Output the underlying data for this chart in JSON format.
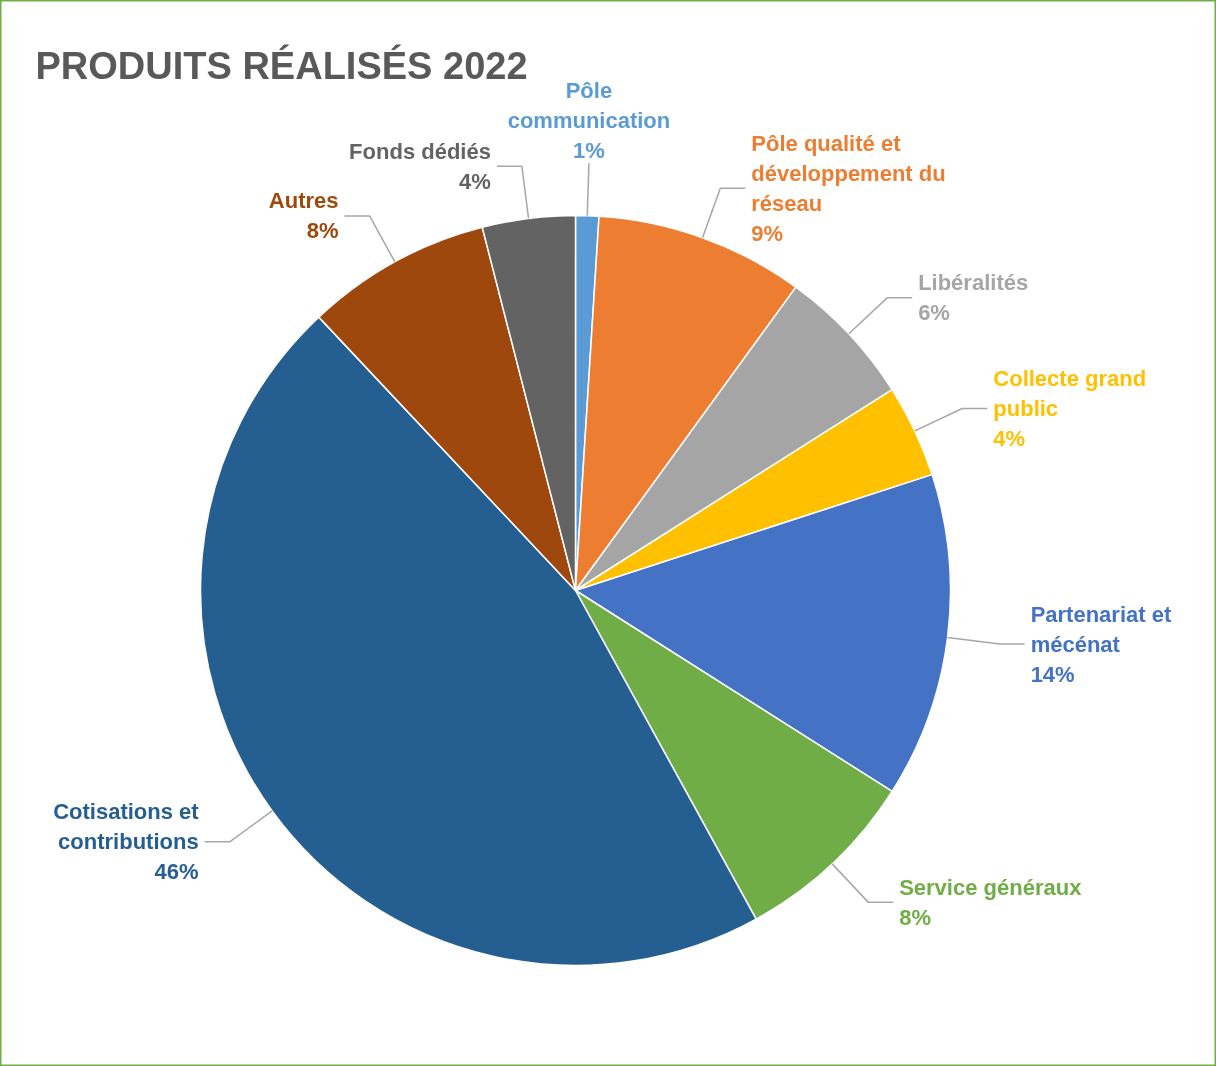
{
  "chart_data": {
    "type": "pie",
    "title": "PRODUITS RÉALISÉS 2022",
    "categories": [
      "Pôle communication",
      "Pôle qualité et développement du réseau",
      "Libéralités",
      "Collecte grand public",
      "Partenariat et mécénat",
      "Service généraux",
      "Cotisations et contributions",
      "Autres",
      "Fonds dédiés"
    ],
    "values": [
      1,
      9,
      6,
      4,
      14,
      8,
      46,
      8,
      4
    ],
    "value_labels": [
      "1%",
      "9%",
      "6%",
      "4%",
      "14%",
      "8%",
      "46%",
      "8%",
      "4%"
    ],
    "colors": [
      "#5b9bd5",
      "#ed7d31",
      "#a5a5a5",
      "#ffc000",
      "#4472c4",
      "#70ad47",
      "#255e91",
      "#9e480e",
      "#636363"
    ]
  }
}
